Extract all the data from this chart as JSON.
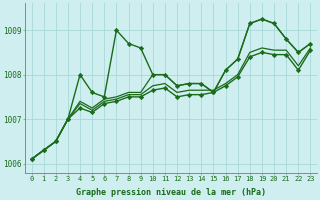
{
  "xlabel": "Graphe pression niveau de la mer (hPa)",
  "bg_color": "#ceeef0",
  "grid_color": "#a8d8d8",
  "line_color": "#1a6b1a",
  "marker_color": "#1a6b1a",
  "xlim": [
    -0.5,
    23.5
  ],
  "ylim": [
    1005.8,
    1009.6
  ],
  "yticks": [
    1006,
    1007,
    1008,
    1009
  ],
  "xticks": [
    0,
    1,
    2,
    3,
    4,
    5,
    6,
    7,
    8,
    9,
    10,
    11,
    12,
    13,
    14,
    15,
    16,
    17,
    18,
    19,
    20,
    21,
    22,
    23
  ],
  "series": [
    {
      "y": [
        1006.1,
        1006.3,
        1006.5,
        1007.0,
        1008.0,
        1007.6,
        1007.5,
        1009.0,
        1008.7,
        1008.6,
        1008.0,
        1008.0,
        1007.75,
        1007.8,
        1007.8,
        1007.6,
        1008.1,
        1008.35,
        1009.15,
        1009.25,
        1009.15,
        1008.8,
        1008.5,
        1008.7
      ],
      "marker": true,
      "lw": 1.0
    },
    {
      "y": [
        1006.1,
        1006.3,
        1006.5,
        1007.0,
        1007.4,
        1007.25,
        1007.45,
        1007.5,
        1007.6,
        1007.6,
        1008.0,
        1008.0,
        1007.75,
        1007.8,
        1007.8,
        1007.6,
        1008.1,
        1008.35,
        1009.15,
        1009.25,
        1009.15,
        1008.8,
        1008.5,
        1008.7
      ],
      "marker": false,
      "lw": 0.9
    },
    {
      "y": [
        1006.1,
        1006.3,
        1006.5,
        1007.0,
        1007.35,
        1007.2,
        1007.4,
        1007.45,
        1007.55,
        1007.55,
        1007.75,
        1007.8,
        1007.6,
        1007.65,
        1007.65,
        1007.65,
        1007.8,
        1008.0,
        1008.5,
        1008.6,
        1008.55,
        1008.55,
        1008.2,
        1008.6
      ],
      "marker": false,
      "lw": 0.9
    },
    {
      "y": [
        1006.1,
        1006.3,
        1006.5,
        1007.0,
        1007.25,
        1007.15,
        1007.35,
        1007.4,
        1007.5,
        1007.5,
        1007.65,
        1007.7,
        1007.5,
        1007.55,
        1007.55,
        1007.6,
        1007.75,
        1007.95,
        1008.4,
        1008.5,
        1008.45,
        1008.45,
        1008.1,
        1008.55
      ],
      "marker": true,
      "lw": 1.0
    }
  ]
}
